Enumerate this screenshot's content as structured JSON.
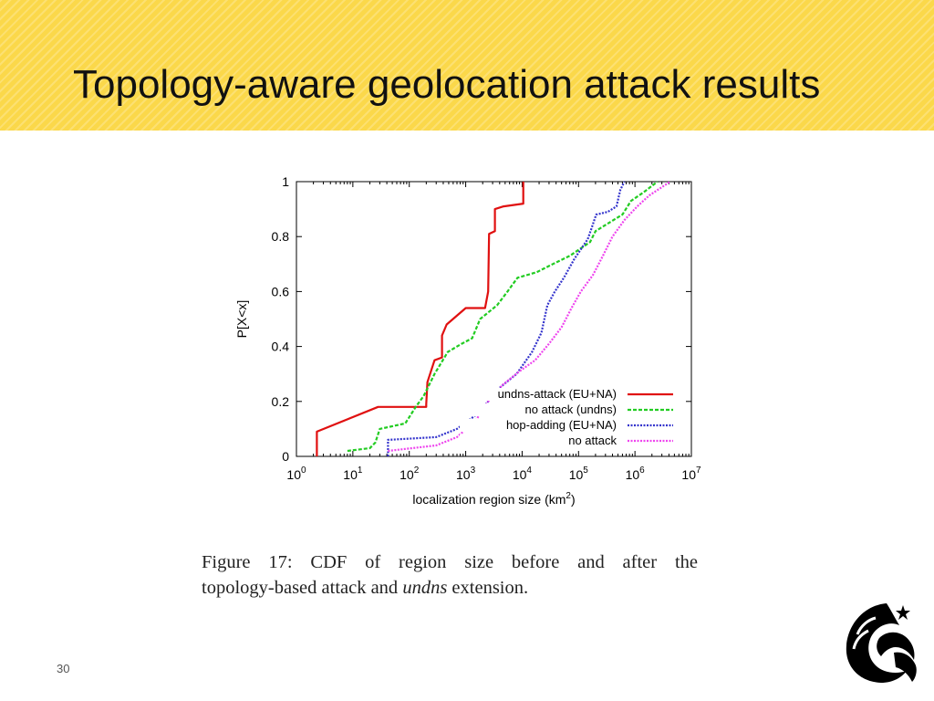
{
  "slide": {
    "title": "Topology-aware geolocation attack results",
    "page_number": "30",
    "caption": {
      "line1": "Figure 17:  CDF of region size before and after the",
      "line2_pre": "topology-based attack and ",
      "line2_em": "undns",
      "line2_post": " extension."
    },
    "colors": {
      "header": "#fbd84a",
      "logo": "#000000"
    }
  },
  "chart_data": {
    "type": "line",
    "xlabel": "localization region size (km",
    "xlabel_sup": "2",
    "xlabel_end": ")",
    "ylabel": "P[X<x]",
    "xscale": "log",
    "xlim": [
      1,
      10000000
    ],
    "ylim": [
      0,
      1
    ],
    "x_ticks": [
      {
        "base": "10",
        "exp": "0",
        "value": 1
      },
      {
        "base": "10",
        "exp": "1",
        "value": 10
      },
      {
        "base": "10",
        "exp": "2",
        "value": 100
      },
      {
        "base": "10",
        "exp": "3",
        "value": 1000
      },
      {
        "base": "10",
        "exp": "4",
        "value": 10000
      },
      {
        "base": "10",
        "exp": "5",
        "value": 100000
      },
      {
        "base": "10",
        "exp": "6",
        "value": 1000000
      },
      {
        "base": "10",
        "exp": "7",
        "value": 10000000
      }
    ],
    "y_ticks": [
      "0",
      "0.2",
      "0.4",
      "0.6",
      "0.8",
      "1"
    ],
    "grid": false,
    "legend_position": "bottom-right",
    "series": [
      {
        "name": "undns-attack (EU+NA)",
        "color": "#e01010",
        "dash": "solid",
        "points": [
          [
            2.3,
            0
          ],
          [
            2.3,
            0.09
          ],
          [
            28,
            0.18
          ],
          [
            200,
            0.18
          ],
          [
            200,
            0.19
          ],
          [
            210,
            0.27
          ],
          [
            280,
            0.35
          ],
          [
            380,
            0.36
          ],
          [
            380,
            0.44
          ],
          [
            460,
            0.48
          ],
          [
            1000,
            0.54
          ],
          [
            2200,
            0.54
          ],
          [
            2500,
            0.6
          ],
          [
            2600,
            0.81
          ],
          [
            3300,
            0.82
          ],
          [
            3300,
            0.9
          ],
          [
            4700,
            0.91
          ],
          [
            10500,
            0.92
          ],
          [
            10500,
            1.0
          ]
        ]
      },
      {
        "name": "no attack (undns)",
        "color": "#22cc22",
        "dash": "dashed",
        "points": [
          [
            8,
            0.02
          ],
          [
            20,
            0.03
          ],
          [
            25,
            0.05
          ],
          [
            30,
            0.1
          ],
          [
            85,
            0.12
          ],
          [
            130,
            0.18
          ],
          [
            180,
            0.22
          ],
          [
            280,
            0.3
          ],
          [
            480,
            0.38
          ],
          [
            850,
            0.41
          ],
          [
            1300,
            0.43
          ],
          [
            1800,
            0.5
          ],
          [
            3600,
            0.55
          ],
          [
            5500,
            0.6
          ],
          [
            8300,
            0.65
          ],
          [
            18000,
            0.67
          ],
          [
            35000,
            0.7
          ],
          [
            70000,
            0.73
          ],
          [
            160000,
            0.78
          ],
          [
            200000,
            0.82
          ],
          [
            600000,
            0.88
          ],
          [
            850000,
            0.93
          ],
          [
            1400000,
            0.96
          ],
          [
            2500000,
            1.0
          ]
        ]
      },
      {
        "name": "hop-adding (EU+NA)",
        "color": "#3333cc",
        "dash": "dotted",
        "points": [
          [
            42,
            0
          ],
          [
            42,
            0.06
          ],
          [
            300,
            0.07
          ],
          [
            700,
            0.1
          ],
          [
            1500,
            0.15
          ],
          [
            2500,
            0.2
          ],
          [
            4000,
            0.25
          ],
          [
            8000,
            0.3
          ],
          [
            15000,
            0.38
          ],
          [
            22000,
            0.45
          ],
          [
            28000,
            0.55
          ],
          [
            38000,
            0.6
          ],
          [
            55000,
            0.65
          ],
          [
            85000,
            0.72
          ],
          [
            145000,
            0.79
          ],
          [
            170000,
            0.83
          ],
          [
            205000,
            0.88
          ],
          [
            330000,
            0.89
          ],
          [
            470000,
            0.91
          ],
          [
            550000,
            0.97
          ],
          [
            650000,
            1.0
          ]
        ]
      },
      {
        "name": "no attack",
        "color": "#ee44ee",
        "dash": "dotted",
        "points": [
          [
            42,
            0.02
          ],
          [
            300,
            0.04
          ],
          [
            700,
            0.07
          ],
          [
            1500,
            0.13
          ],
          [
            2500,
            0.2
          ],
          [
            4500,
            0.26
          ],
          [
            9000,
            0.31
          ],
          [
            17000,
            0.35
          ],
          [
            30000,
            0.41
          ],
          [
            50000,
            0.47
          ],
          [
            75000,
            0.54
          ],
          [
            110000,
            0.6
          ],
          [
            180000,
            0.66
          ],
          [
            270000,
            0.73
          ],
          [
            400000,
            0.8
          ],
          [
            650000,
            0.86
          ],
          [
            1100000,
            0.91
          ],
          [
            1800000,
            0.95
          ],
          [
            3000000,
            0.98
          ],
          [
            4200000,
            1.0
          ]
        ]
      }
    ]
  }
}
